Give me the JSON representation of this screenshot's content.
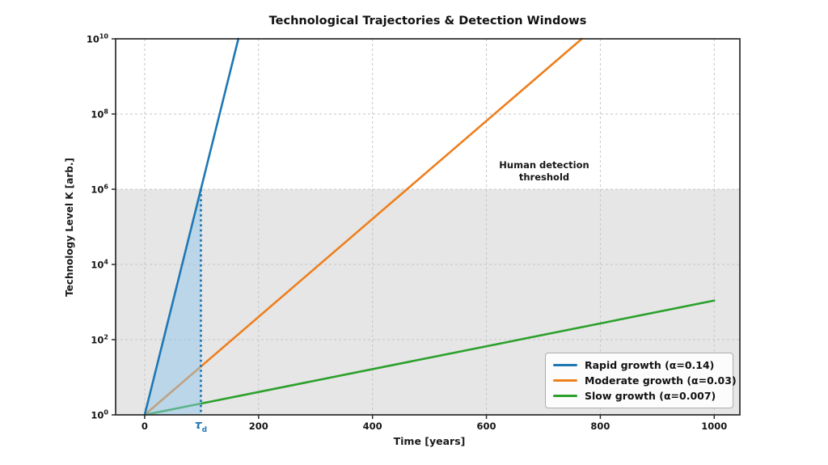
{
  "chart_data": {
    "type": "line",
    "title": "Technological Trajectories & Detection Windows",
    "xlabel": "Time [years]",
    "ylabel": "Technology Level K [arb.]",
    "x_ticks": [
      0,
      200,
      400,
      600,
      800,
      1000
    ],
    "y_scale": "log",
    "y_tick_base": "10",
    "y_tick_exponents": [
      0,
      2,
      4,
      6,
      8,
      10
    ],
    "xlim": [
      -51,
      1045
    ],
    "ylim_exponents": [
      0,
      10
    ],
    "t_range": [
      0,
      1000
    ],
    "grid": true,
    "threshold_exponent": 6,
    "threshold_label": "Human detection threshold",
    "tau_d_years": 98.7,
    "tau_marker": {
      "symbol": "τ",
      "subscript": "d"
    },
    "series": [
      {
        "name": "Rapid growth (α=0.14)",
        "alpha": 0.14,
        "k0": 1,
        "color": "#1f77b4"
      },
      {
        "name": "Moderate growth (α=0.03)",
        "alpha": 0.03,
        "k0": 1,
        "color": "#ee7f1d"
      },
      {
        "name": "Slow growth (α=0.007)",
        "alpha": 0.007,
        "k0": 1,
        "color": "#2ca02c"
      }
    ],
    "legend_position": "lower right",
    "colors": {
      "band": "#e6e6e6",
      "detection_window_fill": "#8ec6ea",
      "grid": "#c6c6c6",
      "frame": "#2a2a2a",
      "tau_line": "#1f77b4"
    }
  }
}
